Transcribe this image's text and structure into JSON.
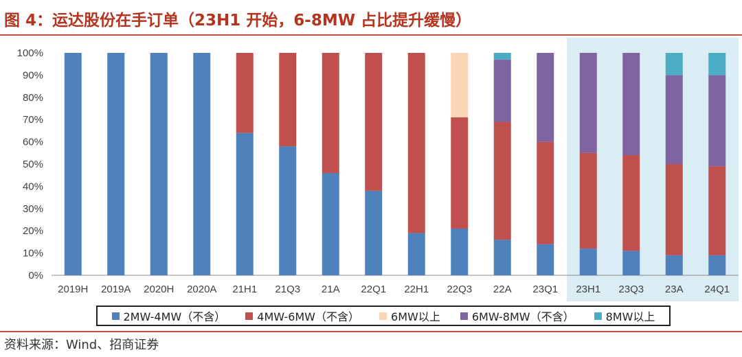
{
  "title": "图 4：运达股份在手订单（23H1 开始，6-8MW 占比提升缓慢）",
  "source": "资料来源：Wind、招商证券",
  "chart_data": {
    "type": "stacked-bar-percent",
    "categories": [
      "2019H",
      "2019A",
      "2020H",
      "2020A",
      "21H1",
      "21Q3",
      "21A",
      "22Q1",
      "22H1",
      "22Q3",
      "22A",
      "23Q1",
      "23H1",
      "23Q3",
      "23A",
      "24Q1"
    ],
    "highlighted_categories": [
      "23H1",
      "23Q3",
      "23A",
      "24Q1"
    ],
    "highlight_color": "#daedf4",
    "ylim": [
      0,
      100
    ],
    "yticks": [
      "0%",
      "10%",
      "20%",
      "30%",
      "40%",
      "50%",
      "60%",
      "70%",
      "80%",
      "90%",
      "100%"
    ],
    "series": [
      {
        "name": "2MW-4MW（不含）",
        "color": "#4f81bd",
        "values": [
          100,
          100,
          100,
          100,
          64,
          58,
          46,
          38,
          19,
          21,
          16,
          14,
          12,
          11,
          9,
          9
        ]
      },
      {
        "name": "4MW-6MW（不含）",
        "color": "#c0504d",
        "values": [
          0,
          0,
          0,
          0,
          36,
          42,
          54,
          62,
          81,
          50,
          53,
          46,
          43,
          43,
          41,
          40
        ]
      },
      {
        "name": "6MW以上",
        "color": "#fcd5b5",
        "values": [
          0,
          0,
          0,
          0,
          0,
          0,
          0,
          0,
          0,
          29,
          0,
          0,
          0,
          0,
          0,
          0
        ]
      },
      {
        "name": "6MW-8MW（不含）",
        "color": "#8064a2",
        "values": [
          0,
          0,
          0,
          0,
          0,
          0,
          0,
          0,
          0,
          0,
          28,
          40,
          45,
          46,
          40,
          41
        ]
      },
      {
        "name": "8MW以上",
        "color": "#4bacc6",
        "values": [
          0,
          0,
          0,
          0,
          0,
          0,
          0,
          0,
          0,
          0,
          3,
          0,
          0,
          0,
          10,
          10
        ]
      }
    ]
  }
}
